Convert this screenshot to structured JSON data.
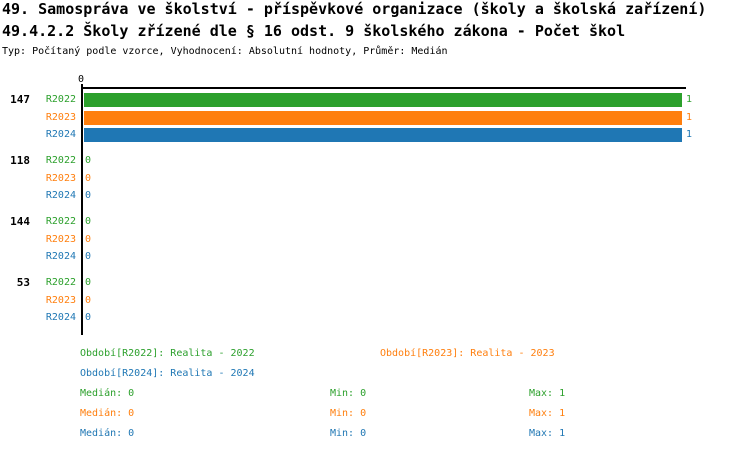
{
  "header": {
    "title_line1": "49. Samospráva ve školství - příspěvkové organizace (školy a školská zařízení)",
    "title_line2": "49.4.2.2 Školy zřízené dle § 16 odst. 9 školského zákona - Počet škol",
    "subtitle": "Typ: Počítaný podle vzorce, Vyhodnocení: Absolutní hodnoty, Průměr: Medián"
  },
  "colors": {
    "r2022": "#2CA02C",
    "r2023": "#FF7F0E",
    "r2024": "#1F77B4",
    "axis": "#000000",
    "title": "#000000"
  },
  "chart_data": {
    "type": "bar",
    "orientation": "horizontal",
    "title": "49.4.2.2 Školy zřízené dle § 16 odst. 9 školského zákona - Počet škol",
    "value_axis": {
      "min": 0,
      "max": 1,
      "tick_labels": [
        "0"
      ],
      "grid": false
    },
    "series_names": [
      "R2022",
      "R2023",
      "R2024"
    ],
    "series_colors": {
      "R2022": "#2CA02C",
      "R2023": "#FF7F0E",
      "R2024": "#1F77B4"
    },
    "legend_position": "bottom",
    "groups": [
      {
        "label": "147",
        "values": {
          "R2022": 1,
          "R2023": 1,
          "R2024": 1
        }
      },
      {
        "label": "118",
        "values": {
          "R2022": 0,
          "R2023": 0,
          "R2024": 0
        }
      },
      {
        "label": "144",
        "values": {
          "R2022": 0,
          "R2023": 0,
          "R2024": 0
        }
      },
      {
        "label": "53",
        "values": {
          "R2022": 0,
          "R2023": 0,
          "R2024": 0
        }
      }
    ],
    "stats": [
      {
        "series": "R2022",
        "median": 0,
        "min": 0,
        "max": 1
      },
      {
        "series": "R2023",
        "median": 0,
        "min": 0,
        "max": 1
      },
      {
        "series": "R2024",
        "median": 0,
        "min": 0,
        "max": 1
      }
    ]
  },
  "legend": {
    "periods": [
      {
        "label": "Období[R2022]: Realita - 2022"
      },
      {
        "label": "Období[R2023]: Realita - 2023"
      },
      {
        "label": "Období[R2024]: Realita - 2024"
      }
    ],
    "stats": [
      {
        "median": "Medián: 0",
        "min": "Min: 0",
        "max": "Max: 1"
      },
      {
        "median": "Medián: 0",
        "min": "Min: 0",
        "max": "Max: 1"
      },
      {
        "median": "Medián: 0",
        "min": "Min: 0",
        "max": "Max: 1"
      }
    ]
  }
}
